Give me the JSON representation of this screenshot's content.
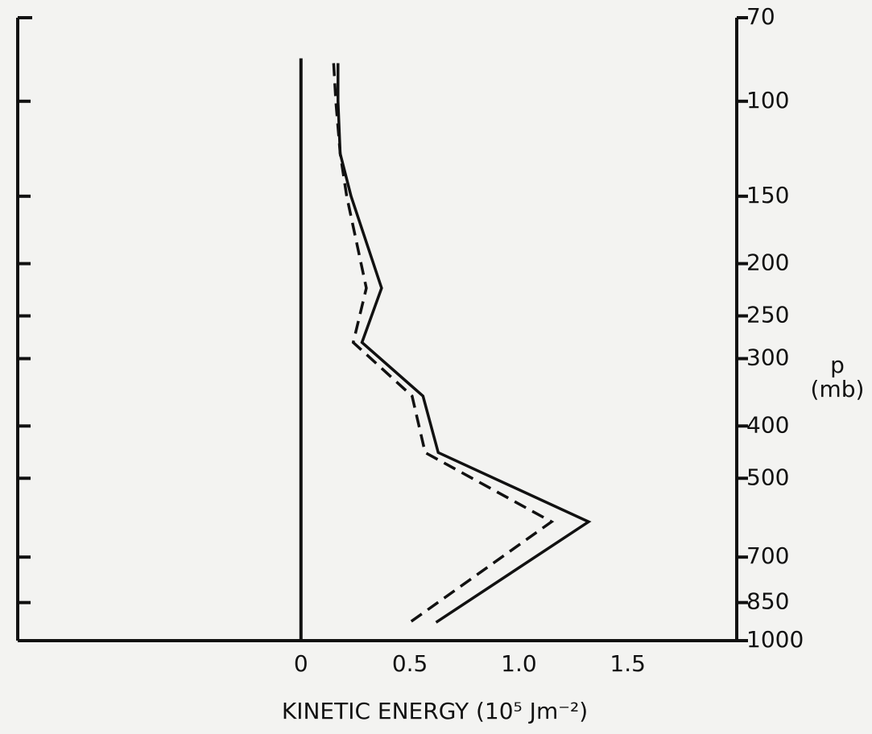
{
  "chart_data": {
    "type": "line",
    "xlabel": "KINETIC ENERGY (10⁵ Jm⁻²)",
    "ylabel": "p",
    "ylabel_unit": "(mb)",
    "y": [
      85,
      100,
      125,
      150,
      222,
      280,
      352,
      448,
      602,
      925
    ],
    "series": [
      {
        "style": "solid",
        "color": "#111111",
        "values": [
          0.17,
          0.17,
          0.18,
          0.23,
          0.37,
          0.28,
          0.56,
          0.63,
          1.32,
          0.62
        ]
      },
      {
        "style": "dashed",
        "color": "#111111",
        "values": [
          0.15,
          0.16,
          0.18,
          0.21,
          0.3,
          0.24,
          0.51,
          0.57,
          1.15,
          0.5
        ]
      }
    ],
    "reference_line_x": 0,
    "xlim": [
      -1.3,
      2.0
    ],
    "xticks": [
      0,
      0.5,
      {
        "value": 1.0,
        "label": "1.0"
      },
      1.5
    ],
    "ylim": [
      1000,
      70
    ],
    "ylog": true,
    "yticks": [
      70,
      100,
      150,
      200,
      250,
      300,
      400,
      500,
      700,
      850,
      1000
    ]
  }
}
